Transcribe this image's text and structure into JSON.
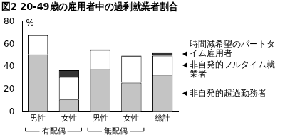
{
  "chart_data": {
    "type": "bar",
    "title": "図2 20-49歳の雇用者中の過剰就業者割合",
    "y_label": "%",
    "categories": [
      "男性",
      "女性",
      "男性",
      "女性",
      "総計"
    ],
    "groups": [
      {
        "label": "有配偶",
        "from": 0,
        "to": 1
      },
      {
        "label": "無配偶",
        "from": 2,
        "to": 3
      }
    ],
    "series": [
      {
        "name": "非自発的超過勤務者",
        "color": "#c4c4c4",
        "values": [
          51,
          11,
          38,
          26,
          33
        ]
      },
      {
        "name": "非自発的フルタイム就業者",
        "color": "#ffffff",
        "values": [
          17,
          20,
          17,
          23,
          17
        ]
      },
      {
        "name": "時間減希望のパートタイム雇用者",
        "color": "#333333",
        "values": [
          0.5,
          6,
          0.5,
          1,
          3
        ]
      }
    ],
    "stacked": true,
    "legend": "right",
    "grid": false,
    "ylim": [
      0,
      80
    ],
    "yticks": [
      0,
      20,
      40,
      60,
      80
    ]
  }
}
